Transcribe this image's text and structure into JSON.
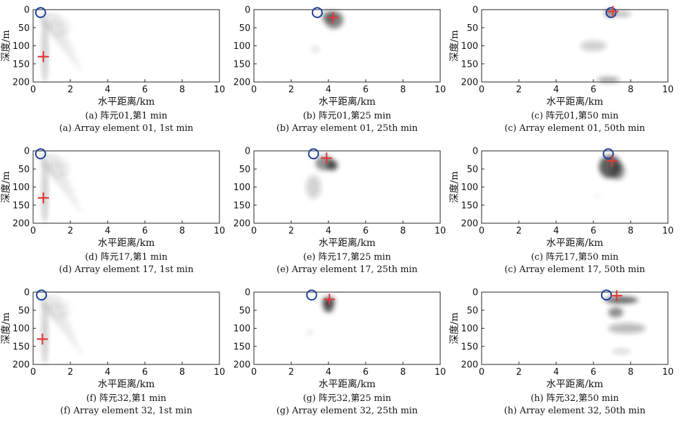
{
  "chart_data": [
    {
      "type": "heatmap",
      "panel": "a",
      "title": "(a) 阵元01,第1 min",
      "subtitle": "(a) Array element 01, 1st min",
      "xlabel": "水平距离/km",
      "ylabel": "深度/m",
      "xlim": [
        0,
        10
      ],
      "ylim": [
        0,
        200
      ],
      "xticks": [
        "0",
        "2",
        "4",
        "6",
        "8",
        "10"
      ],
      "yticks": [
        "0",
        "50",
        "100",
        "150",
        "200"
      ],
      "circle": {
        "x": 0.4,
        "y": 8
      },
      "cross": {
        "x": 0.55,
        "y": 130
      }
    },
    {
      "type": "heatmap",
      "panel": "b",
      "title": "(b) 阵元01,第25 min",
      "subtitle": "(b) Array element 01, 25th min",
      "xlabel": "水平距离/km",
      "ylabel": "",
      "xlim": [
        0,
        10
      ],
      "ylim": [
        0,
        200
      ],
      "xticks": [
        "0",
        "2",
        "4",
        "6",
        "8",
        "10"
      ],
      "yticks": [
        "0",
        "50",
        "100",
        "150",
        "200"
      ],
      "circle": {
        "x": 3.4,
        "y": 8
      },
      "cross": {
        "x": 4.25,
        "y": 22
      }
    },
    {
      "type": "heatmap",
      "panel": "c1",
      "title": "(c) 阵元01,第50 min",
      "subtitle": "(c) Array element 01, 50th min",
      "xlabel": "水平距离/km",
      "ylabel": "深度/m",
      "xlim": [
        0,
        10
      ],
      "ylim": [
        0,
        200
      ],
      "xticks": [
        "0",
        "2",
        "4",
        "6",
        "8",
        "10"
      ],
      "yticks": [
        "0",
        "50",
        "100",
        "150",
        "200"
      ],
      "circle": {
        "x": 6.95,
        "y": 8
      },
      "cross": {
        "x": 7.05,
        "y": 5
      }
    },
    {
      "type": "heatmap",
      "panel": "d",
      "title": "(d) 阵元17,第1 min",
      "subtitle": "(d) Array element 17, 1st min",
      "xlabel": "水平距离/km",
      "ylabel": "深度/m",
      "xlim": [
        0,
        10
      ],
      "ylim": [
        0,
        200
      ],
      "xticks": [
        "0",
        "2",
        "4",
        "6",
        "8",
        "10"
      ],
      "yticks": [
        "0",
        "50",
        "100",
        "150",
        "200"
      ],
      "circle": {
        "x": 0.4,
        "y": 8
      },
      "cross": {
        "x": 0.55,
        "y": 130
      }
    },
    {
      "type": "heatmap",
      "panel": "e",
      "title": "(e) 阵元17,第25 min",
      "subtitle": "(e) Array element 17, 25th min",
      "xlabel": "水平距离/km",
      "ylabel": "",
      "xlim": [
        0,
        10
      ],
      "ylim": [
        0,
        200
      ],
      "xticks": [
        "0",
        "2",
        "4",
        "6",
        "8",
        "10"
      ],
      "yticks": [
        "0",
        "50",
        "100",
        "150",
        "200"
      ],
      "circle": {
        "x": 3.2,
        "y": 8
      },
      "cross": {
        "x": 3.9,
        "y": 20
      }
    },
    {
      "type": "heatmap",
      "panel": "c2",
      "title": "(c) 阵元17,第50 min",
      "subtitle": "(c) Array element 17, 50th min",
      "xlabel": "水平距离/km",
      "ylabel": "深度/m",
      "xlim": [
        0,
        10
      ],
      "ylim": [
        0,
        200
      ],
      "xticks": [
        "0",
        "2",
        "4",
        "6",
        "8",
        "10"
      ],
      "yticks": [
        "0",
        "50",
        "100",
        "150",
        "200"
      ],
      "circle": {
        "x": 6.8,
        "y": 8
      },
      "cross": {
        "x": 7.0,
        "y": 28
      }
    },
    {
      "type": "heatmap",
      "panel": "f",
      "title": "(f) 阵元32,第1 min",
      "subtitle": "(f) Array element 32, 1st min",
      "xlabel": "水平距离/km",
      "ylabel": "深度/m",
      "xlim": [
        0,
        10
      ],
      "ylim": [
        0,
        200
      ],
      "xticks": [
        "0",
        "2",
        "4",
        "6",
        "8",
        "10"
      ],
      "yticks": [
        "0",
        "50",
        "100",
        "150",
        "200"
      ],
      "circle": {
        "x": 0.45,
        "y": 8
      },
      "cross": {
        "x": 0.5,
        "y": 130
      }
    },
    {
      "type": "heatmap",
      "panel": "g",
      "title": "(g) 阵元32,第25 min",
      "subtitle": "(g) Array element 32, 25th min",
      "xlabel": "水平距离/km",
      "ylabel": "",
      "xlim": [
        0,
        10
      ],
      "ylim": [
        0,
        200
      ],
      "xticks": [
        "0",
        "2",
        "4",
        "6",
        "8",
        "10"
      ],
      "yticks": [
        "0",
        "50",
        "100",
        "150",
        "200"
      ],
      "circle": {
        "x": 3.1,
        "y": 8
      },
      "cross": {
        "x": 4.05,
        "y": 20
      }
    },
    {
      "type": "heatmap",
      "panel": "h",
      "title": "(h) 阵元32,第50 min",
      "subtitle": "(h) Array element 32, 50th min",
      "xlabel": "水平距离/km",
      "ylabel": "深度/m",
      "xlim": [
        0,
        10
      ],
      "ylim": [
        0,
        200
      ],
      "xticks": [
        "0",
        "2",
        "4",
        "6",
        "8",
        "10"
      ],
      "yticks": [
        "0",
        "50",
        "100",
        "150",
        "200"
      ],
      "circle": {
        "x": 6.7,
        "y": 8
      },
      "cross": {
        "x": 7.25,
        "y": 10
      }
    }
  ],
  "colors": {
    "circle": "#1a3f9c",
    "cross": "#e23a3a",
    "axis": "#222222",
    "shade": "#202020"
  }
}
